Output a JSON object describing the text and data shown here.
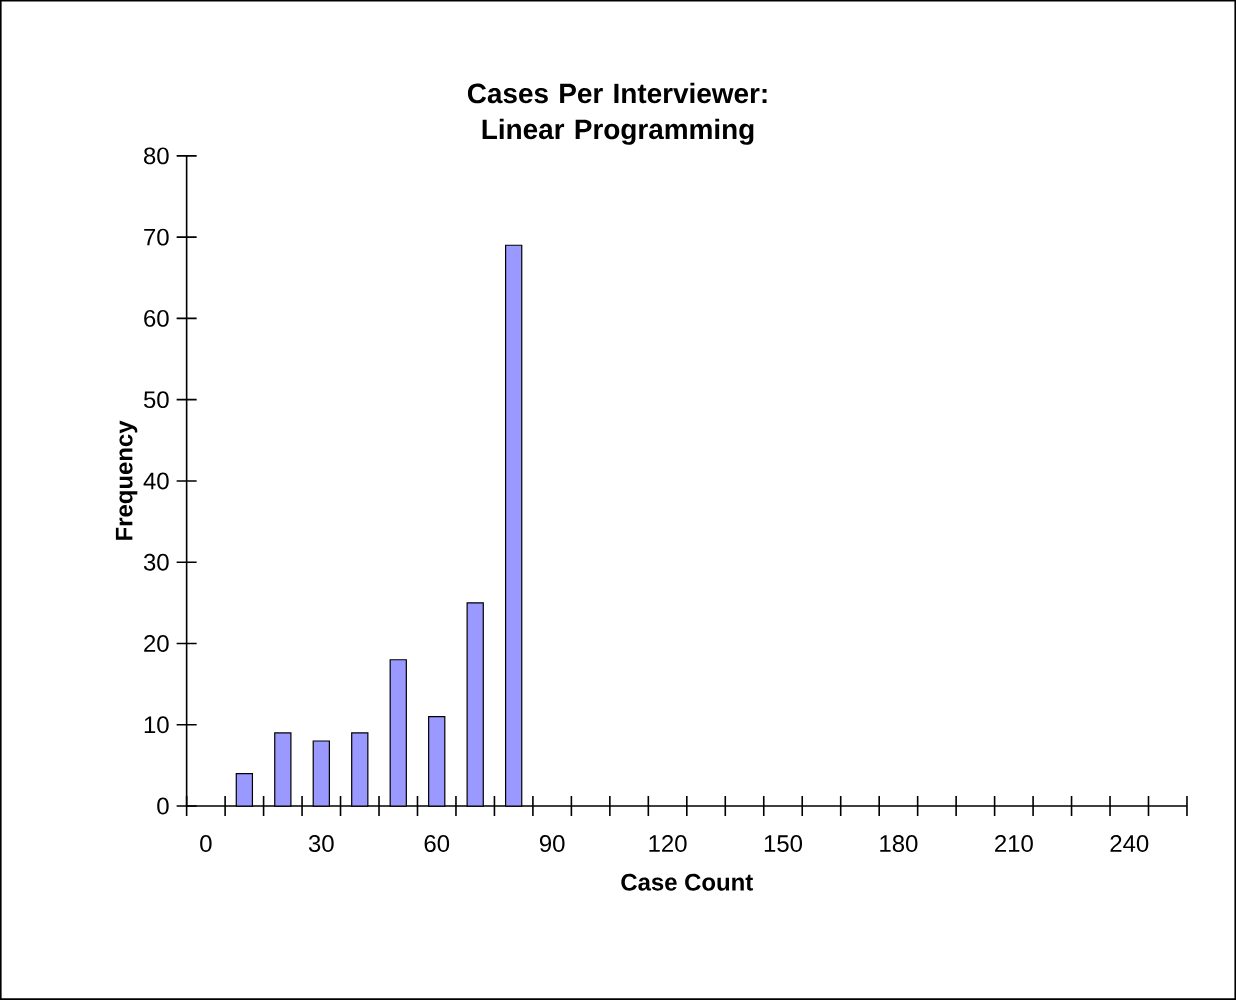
{
  "chart_data": {
    "type": "bar",
    "title": "Cases Per Interviewer: Linear Programming",
    "xlabel": "Case Count",
    "ylabel": "Frequency",
    "categories": [
      "0",
      null,
      null,
      "30",
      null,
      null,
      "60",
      null,
      null,
      "90",
      null,
      null,
      "120",
      null,
      null,
      "150",
      null,
      null,
      "180",
      null,
      null,
      "210",
      null,
      null,
      "240",
      null
    ],
    "values": [
      null,
      4,
      9,
      8,
      9,
      18,
      11,
      25,
      69,
      null,
      null,
      null,
      null,
      null,
      null,
      null,
      null,
      null,
      null,
      null,
      null,
      null,
      null,
      null,
      null,
      null
    ],
    "color": "#9999ff",
    "ylim": [
      0,
      80
    ],
    "yticks": [
      0,
      10,
      20,
      30,
      40,
      50,
      60,
      70,
      80
    ],
    "grid": false
  }
}
